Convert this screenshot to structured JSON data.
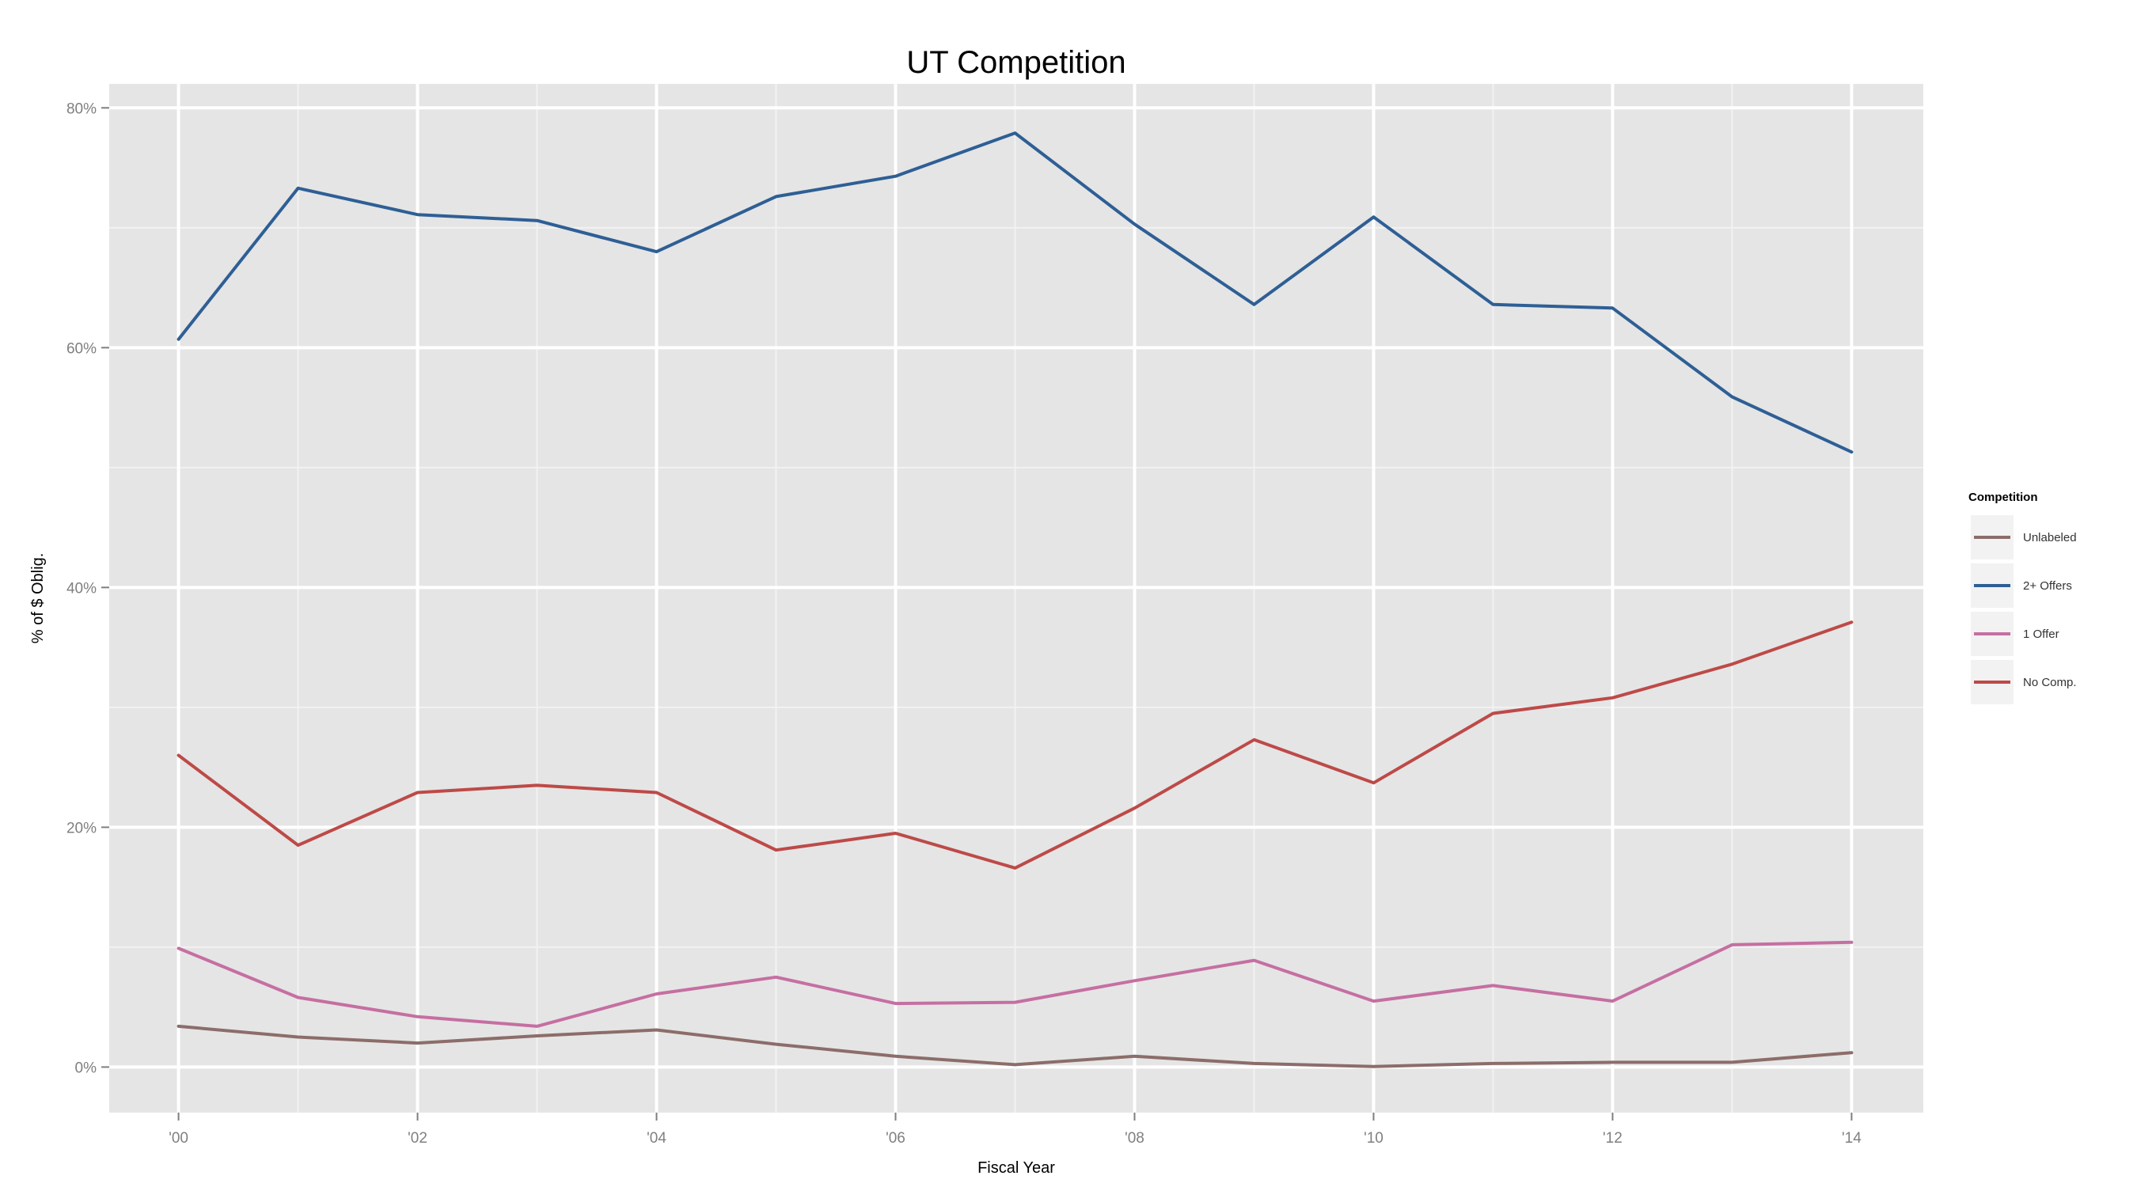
{
  "chart_data": {
    "type": "line",
    "title": "UT Competition",
    "xlabel": "Fiscal Year",
    "ylabel": "% of $ Oblig.",
    "x": [
      2000,
      2001,
      2002,
      2003,
      2004,
      2005,
      2006,
      2007,
      2008,
      2009,
      2010,
      2011,
      2012,
      2013,
      2014
    ],
    "x_ticks": [
      2000,
      2002,
      2004,
      2006,
      2008,
      2010,
      2012,
      2014
    ],
    "x_tick_labels": [
      "'00",
      "'02",
      "'04",
      "'06",
      "'08",
      "'10",
      "'12",
      "'14"
    ],
    "xlim": [
      1999.42,
      2014.6
    ],
    "y_ticks": [
      0,
      20,
      40,
      60,
      80
    ],
    "y_tick_labels": [
      "0%",
      "20%",
      "40%",
      "60%",
      "80%"
    ],
    "ylim": [
      -3.8,
      82
    ],
    "grid": true,
    "legend": {
      "title": "Competition",
      "placement": "right"
    },
    "series": [
      {
        "name": "Unlabeled",
        "color": "#8c6d6a",
        "values": [
          3.4,
          2.5,
          2.0,
          2.6,
          3.1,
          1.9,
          0.9,
          0.2,
          0.9,
          0.3,
          0.05,
          0.3,
          0.4,
          0.4,
          1.2
        ]
      },
      {
        "name": "2+ Offers",
        "color": "#2e5f95",
        "values": [
          60.7,
          73.3,
          71.1,
          70.6,
          68.0,
          72.6,
          74.3,
          77.9,
          70.3,
          63.6,
          70.9,
          63.6,
          63.3,
          55.9,
          51.3
        ]
      },
      {
        "name": "1 Offer",
        "color": "#c56fa2",
        "values": [
          9.9,
          5.8,
          4.2,
          3.4,
          6.1,
          7.5,
          5.3,
          5.4,
          7.2,
          8.9,
          5.5,
          6.8,
          5.5,
          10.2,
          10.4
        ]
      },
      {
        "name": "No Comp.",
        "color": "#bd4a48",
        "values": [
          26.0,
          18.5,
          22.9,
          23.5,
          22.9,
          18.1,
          19.5,
          16.6,
          21.6,
          27.3,
          23.7,
          29.5,
          30.8,
          33.6,
          37.1
        ]
      }
    ]
  }
}
